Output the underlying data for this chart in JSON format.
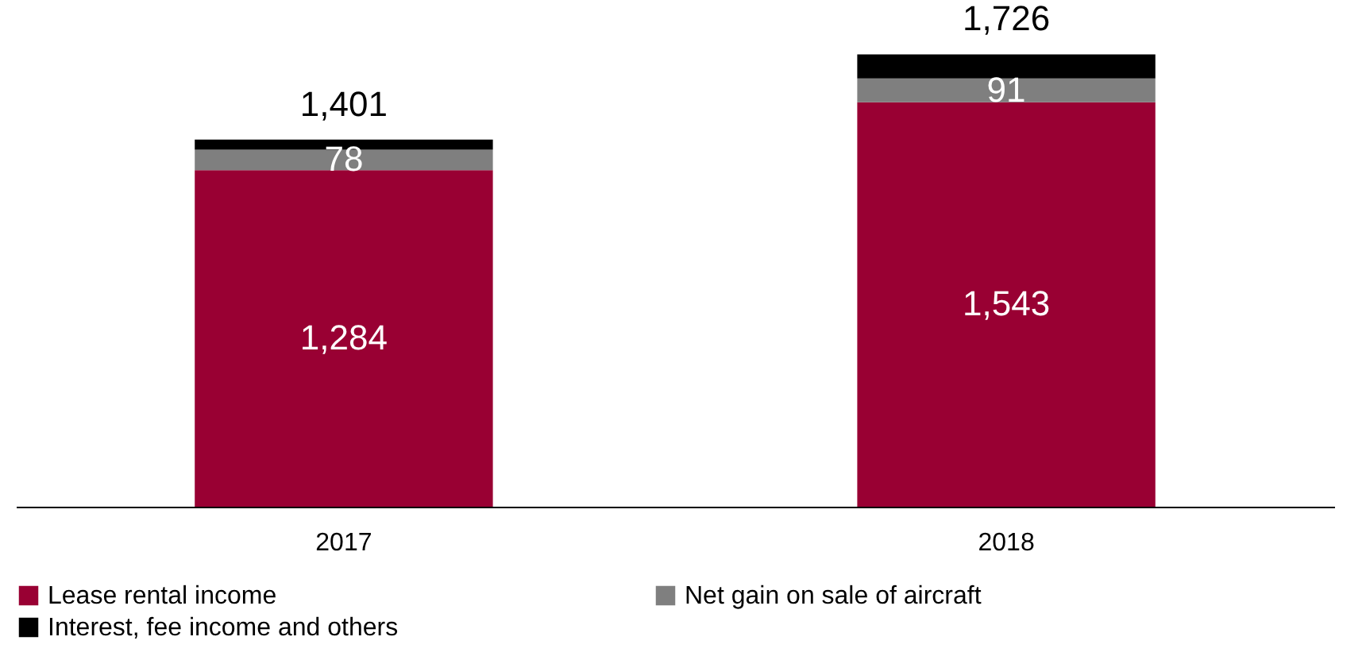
{
  "chart_data": {
    "type": "bar",
    "stacked": true,
    "categories": [
      "2017",
      "2018"
    ],
    "tick_labels": "x",
    "legend": "bottom",
    "series": [
      {
        "name": "Lease rental income",
        "color": "#990033",
        "values": [
          1284,
          1543
        ],
        "value_labels": [
          "1,284",
          "1,543"
        ]
      },
      {
        "name": "Net gain on sale of aircraft",
        "color": "#7f7f7f",
        "values": [
          78,
          91
        ],
        "value_labels": [
          "78",
          "91"
        ]
      },
      {
        "name": "Interest, fee income and others",
        "color": "#000000",
        "values": [
          39,
          92
        ],
        "value_labels": [
          null,
          null
        ]
      }
    ],
    "totals": [
      "1,401",
      "1,726"
    ]
  }
}
